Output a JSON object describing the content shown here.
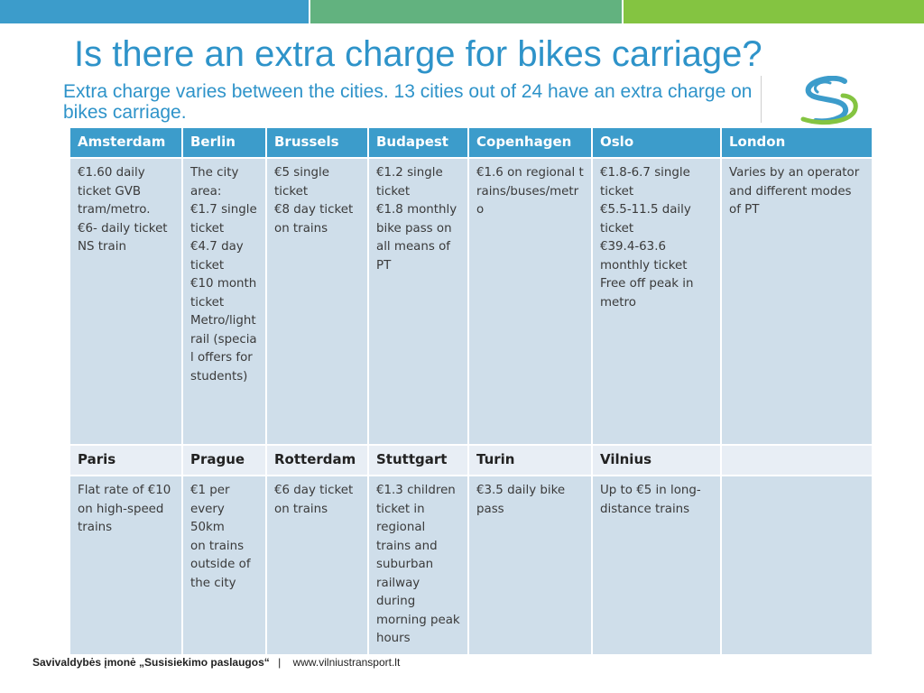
{
  "slide": {
    "title": "Is there an extra charge for bikes carriage?",
    "subtitle": "Extra charge varies between the cities. 13 cities out of 24 have an extra charge on bikes carriage.",
    "colors": {
      "bar_blue": "#3c9ccb",
      "bar_teal": "#62b27f",
      "bar_green": "#84c441",
      "title_blue": "#2e93c9"
    }
  },
  "logo": {
    "icon": "company-logo-icon"
  },
  "table": {
    "row1_headers": [
      "Amsterdam",
      "Berlin",
      "Brussels",
      "Budapest",
      "Copenhagen",
      "Oslo",
      "London"
    ],
    "row1_cells": [
      [
        "€1.60 daily ticket GVB tram/metro.",
        "€6- daily ticket NS train"
      ],
      [
        "The city area:",
        "€1.7 single ticket",
        "€4.7 day ticket",
        "€10 month ticket",
        "Metro/light rail (special offers for students)"
      ],
      [
        "€5 single ticket",
        "€8 day ticket on trains"
      ],
      [
        "€1.2 single ticket",
        "€1.8 monthly bike pass on all means of PT"
      ],
      [
        "€1.6 on regional trains/buses/metro"
      ],
      [
        "€1.8-6.7 single ticket",
        "€5.5-11.5 daily ticket",
        "€39.4-63.6 monthly ticket",
        "Free off peak in metro"
      ],
      [
        "Varies by an operator and different modes of PT"
      ]
    ],
    "row2_headers": [
      "Paris",
      "Prague",
      "Rotterdam",
      "Stuttgart",
      "Turin",
      "Vilnius",
      ""
    ],
    "row2_cells": [
      [
        "Flat rate of €10",
        "on high-speed trains"
      ],
      [
        "€1 per every 50km",
        "on trains outside of the city"
      ],
      [
        "€6 day ticket on trains"
      ],
      [
        "€1.3 children ticket in regional trains and suburban railway during morning peak hours"
      ],
      [
        "€3.5 daily bike pass"
      ],
      [
        "Up to €5 in long-distance trains"
      ],
      []
    ]
  },
  "footer": {
    "company": "Savivaldybės įmonė „Susisiekimo paslaugos“",
    "separator": "|",
    "website": "www.vilniustransport.lt"
  }
}
